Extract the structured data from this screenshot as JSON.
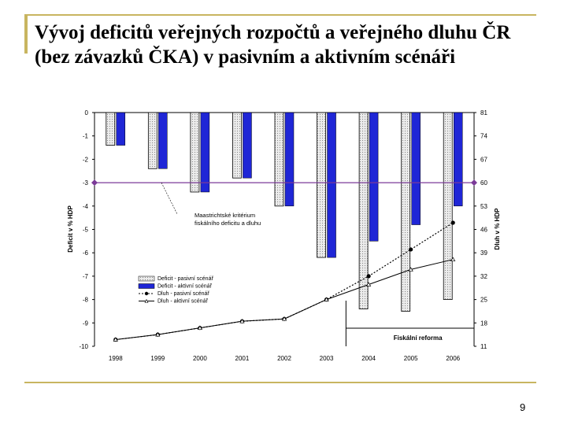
{
  "slide": {
    "title": "Vývoj deficitů veřejných rozpočtů a veřejného dluhu ČR (bez závazků ČKA) v pasivním a aktivním scénáři",
    "page_number": "9",
    "accent_color": "#c8b560"
  },
  "chart_data": {
    "type": "bar",
    "categories": [
      "1998",
      "1999",
      "2000",
      "2001",
      "2002",
      "2003",
      "2004",
      "2005",
      "2006"
    ],
    "ylabel_left": "Deficit v % HDP",
    "ylabel_right": "Dluh v % HDP",
    "ylim_left": [
      -10,
      0
    ],
    "ylim_right": [
      11,
      81
    ],
    "left_ticks": [
      "0",
      "-1",
      "-2",
      "-3",
      "-4",
      "-5",
      "-6",
      "-7",
      "-8",
      "-9",
      "-10"
    ],
    "right_ticks": [
      "81",
      "74",
      "67",
      "60",
      "53",
      "46",
      "39",
      "32",
      "25",
      "18",
      "11"
    ],
    "bar_series": [
      {
        "name": "Deficit - pasivní scénář",
        "color": "#d8d8d8",
        "axis": "left",
        "values": [
          -1.4,
          -2.4,
          -3.4,
          -2.8,
          -4.0,
          -6.2,
          -8.4,
          -8.5,
          -8.0
        ]
      },
      {
        "name": "Deficit - aktivní scénář",
        "color": "#1f26d6",
        "axis": "left",
        "values": [
          -1.4,
          -2.4,
          -3.4,
          -2.8,
          -4.0,
          -6.2,
          -5.5,
          -4.8,
          -4.0
        ]
      }
    ],
    "line_series": [
      {
        "name": "Dluh - pasivní scénář",
        "color": "#000000",
        "style": "dotted",
        "marker": "circle",
        "axis": "right",
        "values": [
          13.0,
          14.5,
          16.5,
          18.5,
          19.2,
          25.0,
          32.0,
          40.0,
          48.0
        ]
      },
      {
        "name": "Dluh - aktivní scénář",
        "color": "#000000",
        "style": "solid",
        "marker": "triangle",
        "axis": "right",
        "values": [
          13.0,
          14.5,
          16.5,
          18.5,
          19.2,
          25.0,
          29.5,
          34.0,
          37.0
        ]
      }
    ],
    "criterion": {
      "label": "Maastrichtské kritérium fiskálního deficitu a dluhu",
      "left_value": -3,
      "right_value": 60,
      "color": "#7b3a98"
    },
    "reform": {
      "label": "Fiskální reforma",
      "from": "2004",
      "to": "2006"
    },
    "legend_position": "lower-left",
    "grid": false
  }
}
